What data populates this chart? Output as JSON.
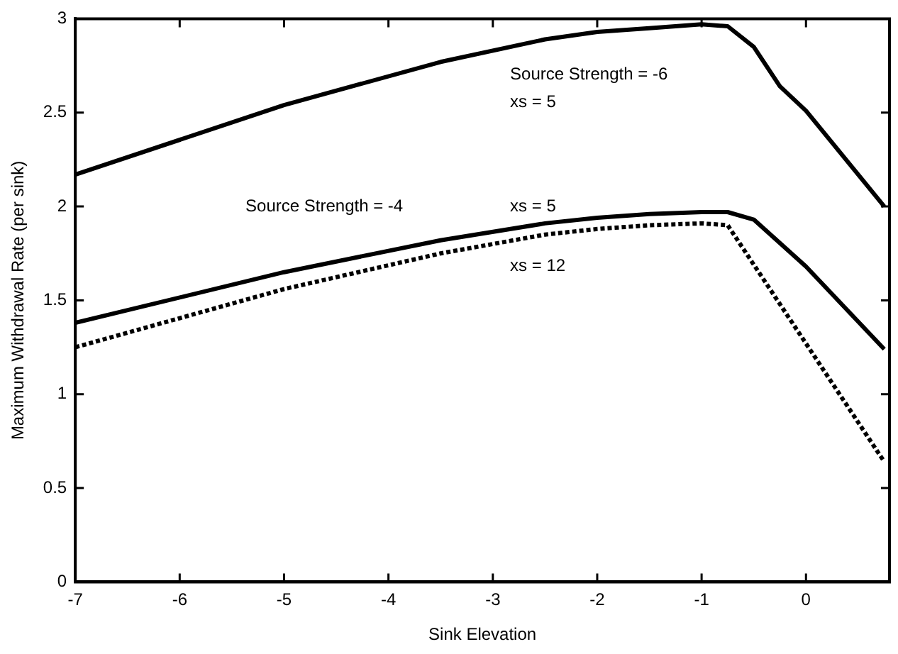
{
  "chart_data": {
    "type": "line",
    "xlabel": "Sink Elevation",
    "ylabel": "Maximum Withdrawal Rate (per sink)",
    "xlim": [
      -7,
      0.8
    ],
    "xticks": [
      -7,
      -6,
      -5,
      -4,
      -3,
      -2,
      -1,
      0
    ],
    "ylim": [
      0,
      3
    ],
    "yticks": [
      0,
      0.5,
      1,
      1.5,
      2,
      2.5,
      3
    ],
    "grid": false,
    "legend": false,
    "marker": "none",
    "series": [
      {
        "color": "#000000",
        "line_style": "solid",
        "x": [
          -7,
          -5,
          -3.5,
          -2.5,
          -2,
          -1.5,
          -1,
          -0.75,
          -0.5,
          -0.25,
          0,
          0.75
        ],
        "values": [
          2.17,
          2.54,
          2.77,
          2.89,
          2.93,
          2.95,
          2.97,
          2.96,
          2.85,
          2.64,
          2.51,
          2.0
        ]
      },
      {
        "color": "#000000",
        "line_style": "solid",
        "x": [
          -7,
          -5,
          -3.5,
          -2.5,
          -2,
          -1.5,
          -1,
          -0.75,
          -0.5,
          0,
          0.75
        ],
        "values": [
          1.38,
          1.65,
          1.82,
          1.91,
          1.94,
          1.96,
          1.97,
          1.97,
          1.93,
          1.68,
          1.24
        ]
      },
      {
        "color": "#000000",
        "line_style": "dotted",
        "x": [
          -7,
          -5,
          -3.5,
          -2.5,
          -2,
          -1.5,
          -1,
          -0.75,
          0.75
        ],
        "values": [
          1.25,
          1.56,
          1.75,
          1.85,
          1.88,
          1.9,
          1.91,
          1.9,
          0.64
        ]
      }
    ],
    "annotations": [
      "Source Strength = -6",
      "xs = 5",
      "Source Strength = -4",
      "xs = 5",
      "xs = 12"
    ]
  }
}
